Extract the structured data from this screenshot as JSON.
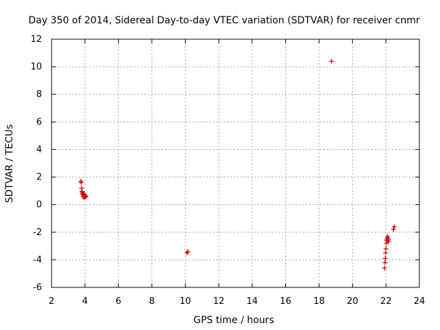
{
  "chart_data": {
    "type": "scatter",
    "title": "Day 350 of 2014, Sidereal Day-to-day VTEC variation (SDTVAR) for receiver cnmr",
    "xlabel": "GPS time / hours",
    "ylabel": "SDTVAR / TECUs",
    "xlim": [
      2,
      24
    ],
    "ylim": [
      -6,
      12
    ],
    "xticks": [
      2,
      4,
      6,
      8,
      10,
      12,
      14,
      16,
      18,
      20,
      22,
      24
    ],
    "yticks": [
      -6,
      -4,
      -2,
      0,
      2,
      4,
      6,
      8,
      10,
      12
    ],
    "xtick_labels": [
      "2",
      "4",
      "6",
      "8",
      "10",
      "12",
      "14",
      "16",
      "18",
      "20",
      "22",
      "24"
    ],
    "ytick_labels": [
      "-6",
      "-4",
      "-2",
      "0",
      "2",
      "4",
      "6",
      "8",
      "10",
      "12"
    ],
    "grid": true,
    "marker": "plus",
    "color": "#cc0000",
    "series": [
      {
        "name": "SDTVAR",
        "x": [
          3.75,
          3.78,
          3.8,
          3.82,
          3.84,
          3.86,
          3.88,
          3.9,
          3.92,
          3.94,
          3.96,
          3.98,
          4.0,
          4.02,
          4.05,
          10.1,
          10.15,
          18.75,
          21.92,
          21.94,
          21.96,
          21.98,
          22.0,
          22.02,
          22.04,
          22.06,
          22.08,
          22.1,
          22.12,
          22.14,
          22.16,
          22.45,
          22.5
        ],
        "y": [
          1.7,
          1.6,
          1.2,
          0.95,
          0.9,
          0.75,
          0.8,
          0.6,
          0.7,
          0.5,
          0.65,
          0.6,
          0.7,
          0.55,
          0.6,
          -3.5,
          -3.4,
          10.4,
          -4.6,
          -4.2,
          -3.9,
          -3.5,
          -3.2,
          -2.8,
          -2.6,
          -2.5,
          -2.4,
          -2.3,
          -2.6,
          -2.7,
          -2.5,
          -1.8,
          -1.6
        ]
      }
    ]
  }
}
